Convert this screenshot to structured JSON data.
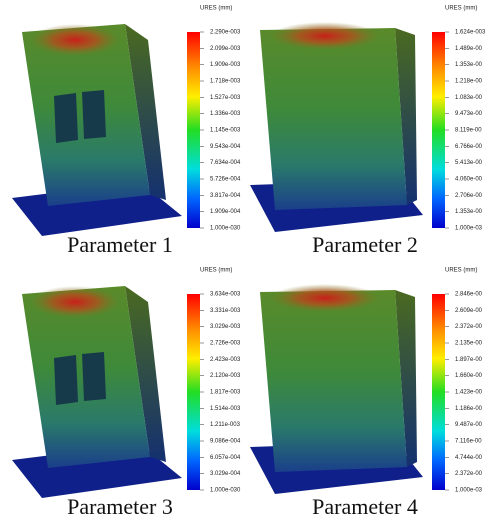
{
  "panels": [
    {
      "legend_title": "URES (mm)",
      "caption": "Parameter 1",
      "labels": [
        "2.290e-003",
        "2.099e-003",
        "1.909e-003",
        "1.718e-003",
        "1.527e-003",
        "1.336e-003",
        "1.145e-003",
        "9.543e-004",
        "7.634e-004",
        "5.726e-004",
        "3.817e-004",
        "1.909e-004",
        "1.000e-030"
      ]
    },
    {
      "legend_title": "URES (mm)",
      "caption": "Parameter 2",
      "labels": [
        "1.624e-003",
        "1.489e-00",
        "1.353e-00",
        "1.218e-00",
        "1.083e-00",
        "9.473e-00",
        "8.119e-00",
        "6.766e-00",
        "5.413e-00",
        "4.060e-00",
        "2.706e-00",
        "1.353e-00",
        "1.000e-03"
      ]
    },
    {
      "legend_title": "URES (mm)",
      "caption": "Parameter 3",
      "labels": [
        "3.634e-003",
        "3.331e-003",
        "3.029e-003",
        "2.726e-003",
        "2.423e-003",
        "2.120e-003",
        "1.817e-003",
        "1.514e-003",
        "1.211e-003",
        "9.086e-004",
        "6.057e-004",
        "3.029e-004",
        "1.000e-030"
      ]
    },
    {
      "legend_title": "URES (mm)",
      "caption": "Parameter 4",
      "labels": [
        "2.846e-00",
        "2.609e-00",
        "2.372e-00",
        "2.135e-00",
        "1.897e-00",
        "1.660e-00",
        "1.423e-00",
        "1.186e-00",
        "9.487e-00",
        "7.116e-00",
        "4.744e-00",
        "2.372e-00",
        "1.000e-03"
      ]
    }
  ]
}
